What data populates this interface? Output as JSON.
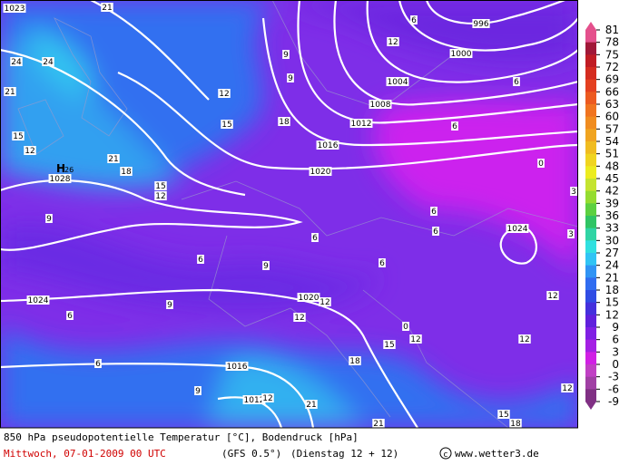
{
  "map": {
    "pressure_labels": [
      "996",
      "1000",
      "1004",
      "1008",
      "1012",
      "1016",
      "1020",
      "1024",
      "1020",
      "1016",
      "1012",
      "1024",
      "1028",
      "1023"
    ],
    "high_marker": "H",
    "high_value": "26",
    "temperature_labels": [
      "21",
      "24",
      "24",
      "21",
      "15",
      "12",
      "21",
      "18",
      "15",
      "12",
      "12",
      "15",
      "18",
      "9",
      "9",
      "9",
      "6",
      "6",
      "9",
      "9",
      "6",
      "6",
      "6",
      "6",
      "6",
      "6",
      "6",
      "0",
      "3",
      "3",
      "12",
      "6",
      "12",
      "12",
      "12",
      "12",
      "15",
      "12",
      "0",
      "18",
      "9",
      "21",
      "21",
      "15",
      "18",
      "12",
      "12"
    ]
  },
  "legend": {
    "ticks": [
      81,
      78,
      75,
      72,
      69,
      66,
      63,
      60,
      57,
      54,
      51,
      48,
      45,
      42,
      39,
      36,
      33,
      30,
      27,
      24,
      21,
      18,
      15,
      12,
      9,
      6,
      3,
      0,
      -3,
      -6,
      -9
    ],
    "colors": [
      "#e4508c",
      "#a01838",
      "#c01c24",
      "#d42c20",
      "#e44020",
      "#ec5a20",
      "#f07420",
      "#f08c20",
      "#f0a420",
      "#f0bc20",
      "#f0d420",
      "#ecec20",
      "#c4e430",
      "#94dc30",
      "#5cd040",
      "#30c464",
      "#30d4a4",
      "#30e0e0",
      "#30c4f4",
      "#3094f4",
      "#306cf0",
      "#304ce4",
      "#4430dc",
      "#6020dc",
      "#8020e4",
      "#a420e4",
      "#d020e4",
      "#c040c4",
      "#a040a4",
      "#803084"
    ]
  },
  "footer": {
    "title": "850 hPa pseudopotentielle Temperatur [°C], Bodendruck [hPa]",
    "date": "Mittwoch, 07-01-2009  00 UTC",
    "model": "(GFS 0.5°)",
    "run": "(Dienstag 12 + 12)",
    "credit": "www.wetter3.de"
  }
}
